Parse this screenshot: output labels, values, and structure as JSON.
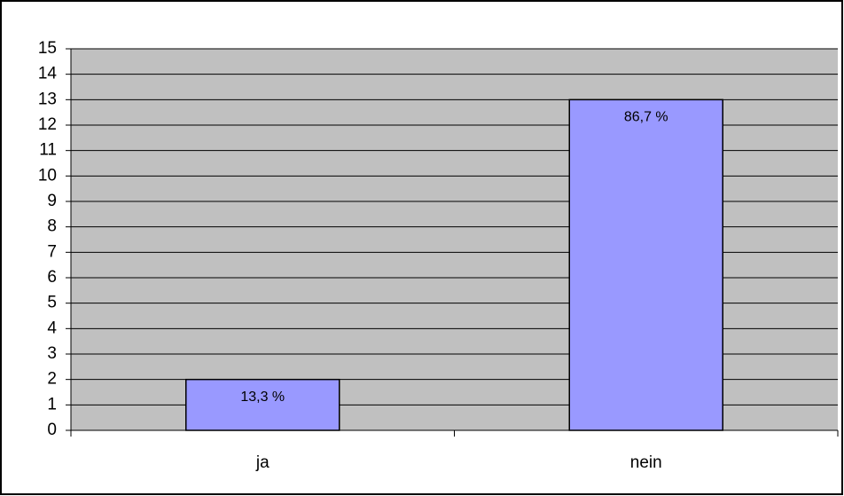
{
  "chart_data": {
    "type": "bar",
    "categories": [
      "ja",
      "nein"
    ],
    "values": [
      2,
      13
    ],
    "annotations": [
      "13,3 %",
      "86,7 %"
    ],
    "color": "#9999ff",
    "ylim": [
      0,
      15
    ],
    "yticks": [
      0,
      1,
      2,
      3,
      4,
      5,
      6,
      7,
      8,
      9,
      10,
      11,
      12,
      13,
      14,
      15
    ],
    "grid": true
  }
}
